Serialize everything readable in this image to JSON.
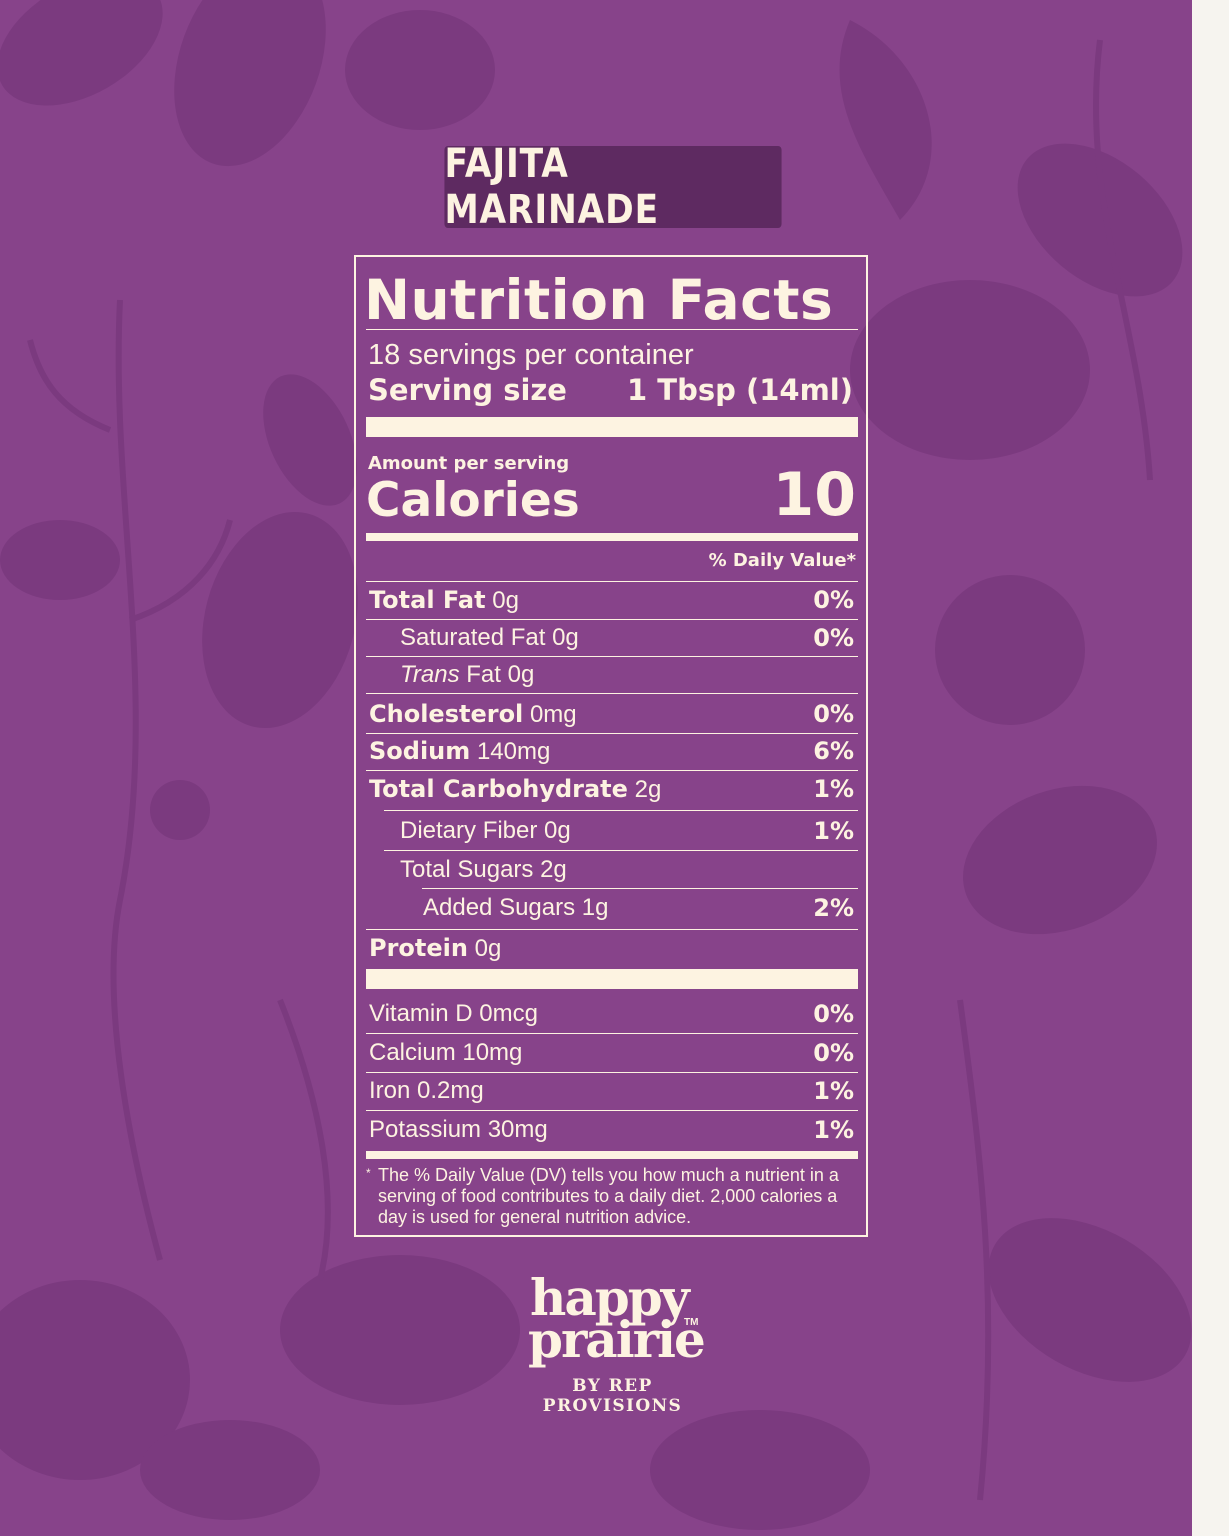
{
  "product_name": "FAJITA MARINADE",
  "facts": {
    "title": "Nutrition Facts",
    "servings_per_container": "18 servings per container",
    "serving_size_label": "Serving size",
    "serving_size_value": "1 Tbsp (14ml)",
    "amount_per_serving": "Amount per serving",
    "calories_label": "Calories",
    "calories_value": "10",
    "daily_value_header": "% Daily Value*",
    "nutrients": [
      {
        "name": "Total Fat",
        "amount": "0g",
        "dv": "0%"
      },
      {
        "name": "Saturated Fat 0g",
        "dv": "0%"
      },
      {
        "italic": "Trans",
        "rest": " Fat 0g"
      },
      {
        "name": "Cholesterol",
        "amount": "0mg",
        "dv": "0%"
      },
      {
        "name": "Sodium",
        "amount": "140mg",
        "dv": "6%"
      },
      {
        "name": "Total Carbohydrate",
        "amount": "2g",
        "dv": "1%"
      },
      {
        "name": "Dietary Fiber 0g",
        "dv": "1%"
      },
      {
        "name": "Total Sugars 2g"
      },
      {
        "name": "Added Sugars 1g",
        "dv": "2%"
      },
      {
        "name": "Protein",
        "amount": "0g"
      }
    ],
    "vitamins": [
      {
        "name": "Vitamin D 0mcg",
        "dv": "0%"
      },
      {
        "name": "Calcium 10mg",
        "dv": "0%"
      },
      {
        "name": "Iron 0.2mg",
        "dv": "1%"
      },
      {
        "name": "Potassium 30mg",
        "dv": "1%"
      }
    ],
    "footnote_star": "*",
    "footnote": "The % Daily Value (DV) tells you how much a nutrient in a serving of food contributes to a daily diet. 2,000 calories a day is used for general nutrition advice."
  },
  "brand": {
    "line1": "happy",
    "line2": "prairie",
    "trademark": "TM",
    "byline": "BY REP PROVISIONS"
  },
  "colors": {
    "background": "#87438a",
    "pattern": "#7a3a7e",
    "tag": "#5e2a61",
    "text": "#fdf3e1",
    "page_edge": "#f6f4ef"
  }
}
